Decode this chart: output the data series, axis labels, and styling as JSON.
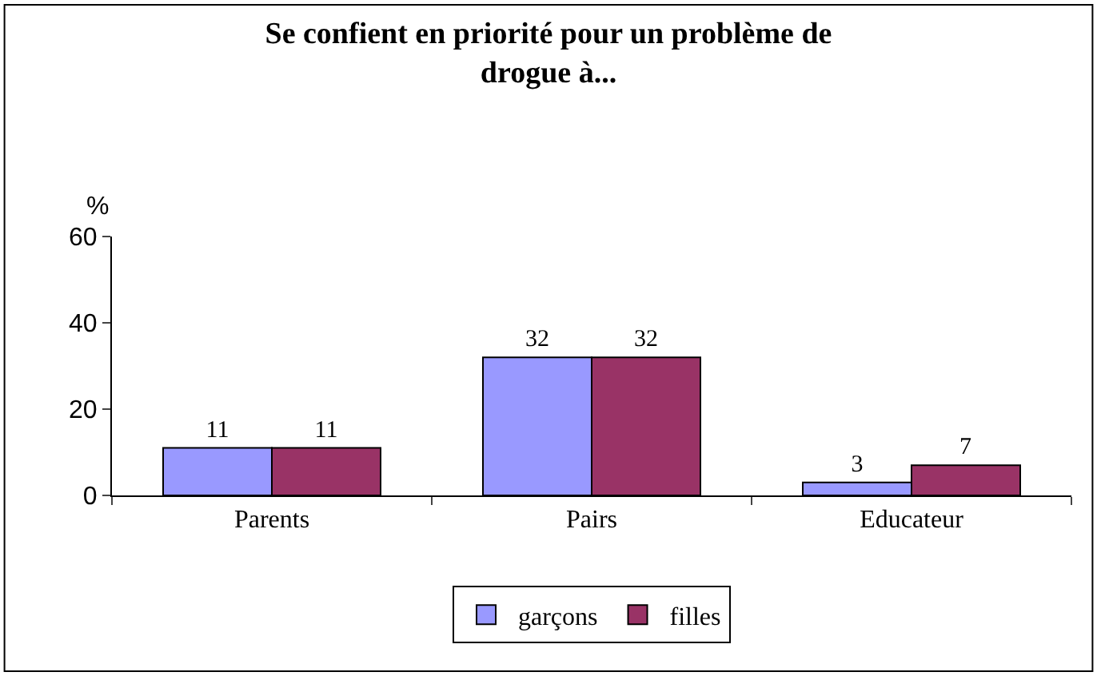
{
  "chart_data": {
    "type": "bar",
    "title": "Se confient en priorité pour un problème de drogue à...",
    "ylabel": "%",
    "categories": [
      "Parents",
      "Pairs",
      "Educateur"
    ],
    "series": [
      {
        "name": "garçons",
        "color": "#9999ff",
        "values": [
          11,
          32,
          3
        ]
      },
      {
        "name": "filles",
        "color": "#993366",
        "values": [
          11,
          32,
          7
        ]
      }
    ],
    "ylim": [
      0,
      60
    ],
    "yticks": [
      0,
      20,
      40,
      60
    ],
    "data_labels": true,
    "legend": "bottom"
  }
}
